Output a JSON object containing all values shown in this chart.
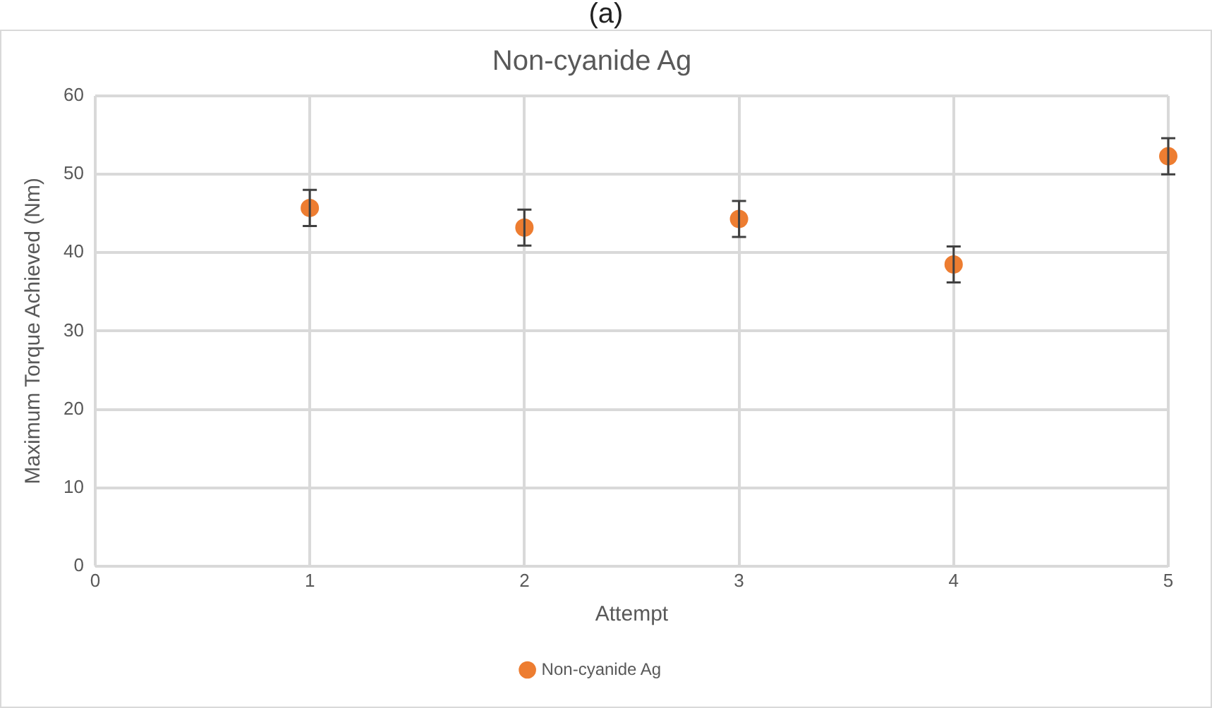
{
  "chart_data": {
    "type": "scatter",
    "title": "Non-cyanide Ag",
    "xlabel": "Attempt",
    "ylabel": "Maximum Torque Achieved (Nm)",
    "annotations": [
      "(a)"
    ],
    "series": [
      {
        "name": "Non-cyanide Ag",
        "color": "#ed7d31",
        "x": [
          1,
          2,
          3,
          4,
          5
        ],
        "values": [
          45.7,
          43.2,
          44.3,
          38.5,
          52.3
        ],
        "errors": [
          2.3,
          2.3,
          2.3,
          2.3,
          2.3
        ]
      }
    ],
    "xlim": [
      0,
      5
    ],
    "xticks": [
      0,
      1,
      2,
      3,
      4,
      5
    ],
    "ylim": [
      0,
      60
    ],
    "yticks": [
      0,
      10,
      20,
      30,
      40,
      50,
      60
    ],
    "grid": true,
    "legend": "bottom",
    "marker": "circle"
  }
}
